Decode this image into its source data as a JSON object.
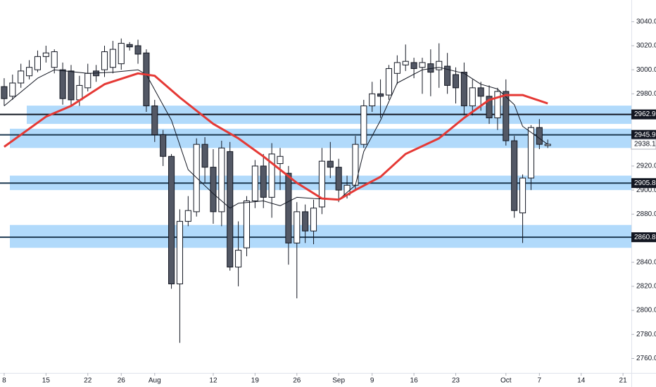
{
  "chart_data": {
    "type": "candlestick",
    "xlim": [
      -0.5,
      75
    ],
    "ylim": [
      2748,
      3058
    ],
    "xticks": [
      {
        "value": 0,
        "label": "8"
      },
      {
        "value": 5,
        "label": "15"
      },
      {
        "value": 10,
        "label": "22"
      },
      {
        "value": 14,
        "label": "26"
      },
      {
        "value": 18,
        "label": "Aug"
      },
      {
        "value": 25,
        "label": "12"
      },
      {
        "value": 30,
        "label": "19"
      },
      {
        "value": 35,
        "label": "26"
      },
      {
        "value": 40,
        "label": "Sep"
      },
      {
        "value": 44,
        "label": "9"
      },
      {
        "value": 49,
        "label": "16"
      },
      {
        "value": 54,
        "label": "23"
      },
      {
        "value": 60,
        "label": "Oct"
      },
      {
        "value": 64,
        "label": "7"
      },
      {
        "value": 69,
        "label": "14"
      },
      {
        "value": 74,
        "label": "21"
      }
    ],
    "yticks": [
      {
        "value": 3040,
        "label": "3040.0"
      },
      {
        "value": 3020,
        "label": "3020.0"
      },
      {
        "value": 3000,
        "label": "3000.0"
      },
      {
        "value": 2980,
        "label": "2980.0"
      },
      {
        "value": 2920,
        "label": "2920.0"
      },
      {
        "value": 2900,
        "label": "2900.0"
      },
      {
        "value": 2880,
        "label": "2880.0"
      },
      {
        "value": 2840,
        "label": "2840.0"
      },
      {
        "value": 2820,
        "label": "2820.0"
      },
      {
        "value": 2800,
        "label": "2800.0"
      },
      {
        "value": 2780,
        "label": "2780.0"
      },
      {
        "value": 2760,
        "label": "2760.0"
      }
    ],
    "up_color": "#ffffff",
    "down_color": "#535865",
    "open": [
      2986,
      2978,
      2989,
      2995,
      3000,
      3011,
      3002,
      3000,
      2999,
      2975,
      2985,
      2999,
      3000,
      3002,
      3005,
      3021,
      3020,
      3014,
      2970,
      2946,
      2928,
      2822,
      2874,
      2882,
      2938,
      2919,
      2882,
      2932,
      2836,
      2852,
      2891,
      2920,
      2894,
      2922,
      2914,
      2856,
      2882,
      2866,
      2886,
      2924,
      2919,
      2896,
      2904,
      2938,
      2970,
      2980,
      2979,
      2997,
      3004,
      3006,
      3002,
      3005,
      3000,
      3003,
      2996,
      2998,
      2970,
      2985,
      2978,
      2960,
      2982,
      2941,
      2881,
      2910,
      2952,
      2937
    ],
    "high": [
      2993,
      2996,
      3005,
      3008,
      3016,
      3020,
      3017,
      3006,
      3004,
      2995,
      3005,
      3004,
      3020,
      3024,
      3026,
      3023,
      3025,
      3017,
      2975,
      2950,
      2930,
      2884,
      2895,
      2943,
      2944,
      2934,
      2941,
      2940,
      2874,
      2895,
      2925,
      2930,
      2939,
      2935,
      2920,
      2890,
      2888,
      2892,
      2935,
      2940,
      2926,
      2912,
      2945,
      2975,
      2990,
      2992,
      3004,
      3012,
      3021,
      3010,
      3010,
      3017,
      3022,
      3014,
      3002,
      3006,
      2992,
      2990,
      2987,
      2985,
      2992,
      2945,
      2913,
      2954,
      2959,
      2942
    ],
    "low": [
      2970,
      2975,
      2985,
      2992,
      2998,
      3006,
      2997,
      2971,
      2970,
      2970,
      2982,
      2990,
      2994,
      2997,
      3000,
      3016,
      3005,
      2965,
      2940,
      2920,
      2818,
      2773,
      2870,
      2878,
      2906,
      2872,
      2870,
      2833,
      2820,
      2845,
      2885,
      2885,
      2877,
      2900,
      2838,
      2810,
      2856,
      2855,
      2880,
      2910,
      2890,
      2893,
      2900,
      2935,
      2965,
      2960,
      2975,
      2988,
      2999,
      2993,
      2980,
      2978,
      2985,
      2980,
      2972,
      2962,
      2962,
      2966,
      2955,
      2950,
      2937,
      2877,
      2856,
      2900,
      2934,
      2935
    ],
    "close": [
      2976,
      2989,
      2999,
      3002,
      3011,
      3014,
      3015,
      2976,
      2975,
      2987,
      2997,
      2995,
      3015,
      3017,
      3022,
      3019,
      3013,
      2970,
      2946,
      2928,
      2822,
      2874,
      2883,
      2938,
      2919,
      2882,
      2935,
      2836,
      2850,
      2891,
      2920,
      2894,
      2930,
      2928,
      2856,
      2882,
      2866,
      2885,
      2924,
      2919,
      2900,
      2904,
      2938,
      2970,
      2980,
      2978,
      3001,
      3006,
      3007,
      3001,
      3006,
      2998,
      3007,
      2987,
      2985,
      2970,
      2985,
      2978,
      2960,
      2982,
      2941,
      2883,
      2910,
      2952,
      2938,
      2938.1
    ],
    "moving_averages": [
      {
        "color": "#131722",
        "x": [
          0,
          4,
          6,
          10,
          13,
          16,
          17,
          20,
          22,
          25,
          27,
          28,
          31,
          33,
          35,
          37,
          40,
          42,
          43,
          45,
          47,
          50,
          52,
          55,
          57,
          59,
          61,
          62,
          64,
          65
        ],
        "values": [
          2970,
          2993,
          3000,
          2997,
          2998,
          3000,
          2996,
          2958,
          2917,
          2897,
          2885,
          2889,
          2891,
          2887,
          2894,
          2893,
          2892,
          2904,
          2932,
          2958,
          2989,
          3000,
          3002,
          2997,
          2988,
          2984,
          2971,
          2953,
          2943,
          2938
        ]
      },
      {
        "color": "#e53935",
        "x": [
          0,
          5,
          8,
          12,
          16,
          18,
          21,
          25,
          28,
          31,
          35,
          38,
          40,
          42,
          45,
          48,
          52,
          55,
          58,
          60,
          62,
          65
        ],
        "values": [
          2936,
          2961,
          2970,
          2988,
          2997,
          2995,
          2977,
          2955,
          2943,
          2928,
          2906,
          2893,
          2892,
          2900,
          2911,
          2930,
          2943,
          2960,
          2975,
          2979,
          2979,
          2972
        ]
      }
    ],
    "levels": [
      {
        "value": 2962.9,
        "band": [
          2955,
          2970.2
        ]
      },
      {
        "value": 2945.9,
        "band": [
          2935,
          2951
        ]
      },
      {
        "value": 2905.8,
        "band": [
          2900,
          2912
        ]
      },
      {
        "value": 2860.8,
        "band": [
          2852,
          2871
        ]
      }
    ],
    "last_price": 2938.1
  }
}
